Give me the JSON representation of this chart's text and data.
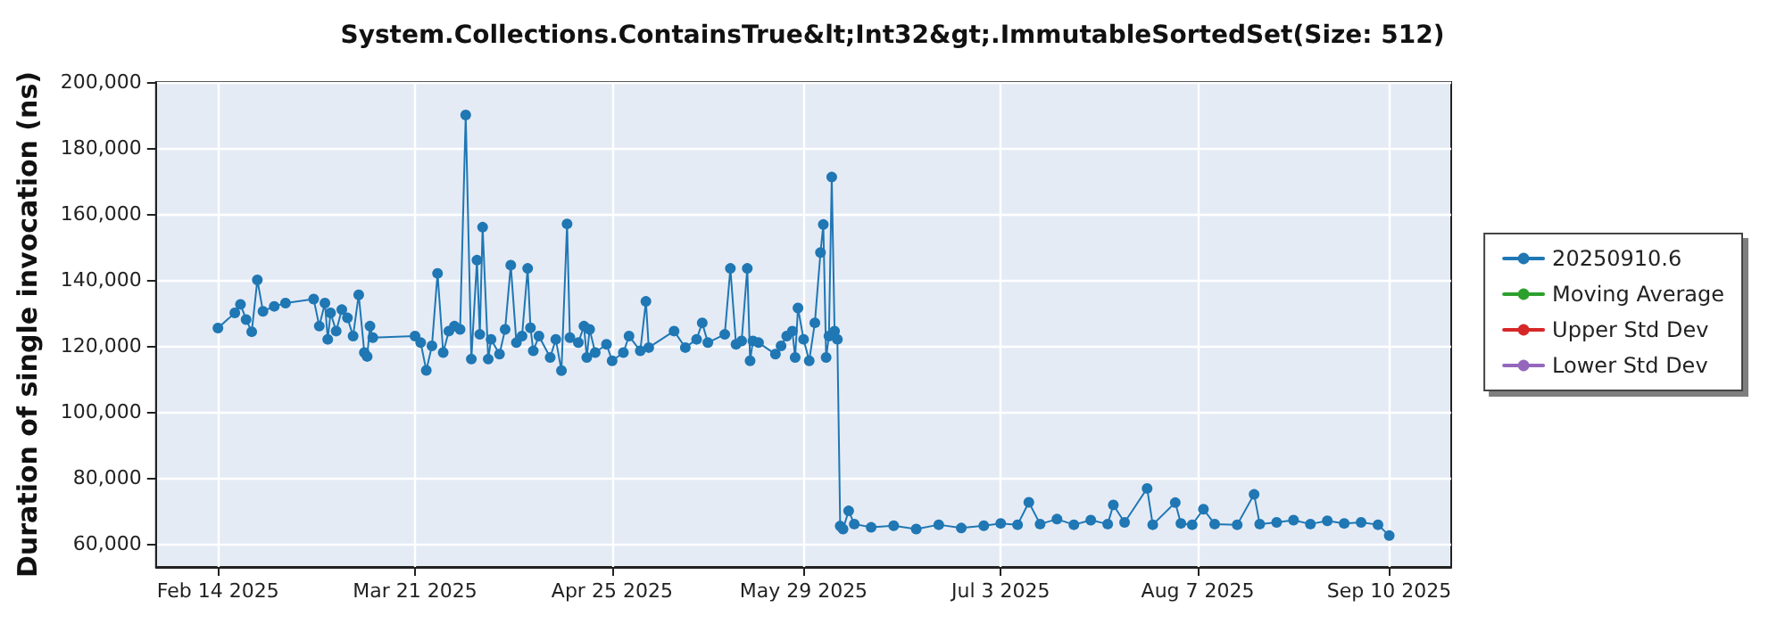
{
  "chart_data": {
    "type": "line",
    "title": "System.Collections.ContainsTrue&lt;Int32&gt;.ImmutableSortedSet(Size: 512)",
    "ylabel": "Duration of single invocation (ns)",
    "xlim": [
      "2025-02-03",
      "2025-09-21"
    ],
    "ylim": [
      53000,
      200000
    ],
    "xticks": [
      {
        "value": "2025-02-14",
        "label": "Feb 14 2025"
      },
      {
        "value": "2025-03-21",
        "label": "Mar 21 2025"
      },
      {
        "value": "2025-04-25",
        "label": "Apr 25 2025"
      },
      {
        "value": "2025-05-29",
        "label": "May 29 2025"
      },
      {
        "value": "2025-07-03",
        "label": "Jul 3 2025"
      },
      {
        "value": "2025-08-07",
        "label": "Aug 7 2025"
      },
      {
        "value": "2025-09-10",
        "label": "Sep 10 2025"
      }
    ],
    "yticks": [
      {
        "value": 60000,
        "label": "60,000"
      },
      {
        "value": 80000,
        "label": "80,000"
      },
      {
        "value": 100000,
        "label": "100,000"
      },
      {
        "value": 120000,
        "label": "120,000"
      },
      {
        "value": 140000,
        "label": "140,000"
      },
      {
        "value": 160000,
        "label": "160,000"
      },
      {
        "value": 180000,
        "label": "180,000"
      },
      {
        "value": 200000,
        "label": "200,000"
      }
    ],
    "grid": true,
    "legend": "right",
    "marker": "circle",
    "line_style": "solid",
    "series": [
      {
        "name": "20250910.6",
        "color": "#1f77b4",
        "x": [
          "2025-02-14",
          "2025-02-17",
          "2025-02-18",
          "2025-02-19",
          "2025-02-20",
          "2025-02-21",
          "2025-02-22",
          "2025-02-24",
          "2025-02-26",
          "2025-03-03",
          "2025-03-04",
          "2025-03-05",
          "2025-03-05T12:00",
          "2025-03-06",
          "2025-03-07",
          "2025-03-08",
          "2025-03-09",
          "2025-03-10",
          "2025-03-11",
          "2025-03-12",
          "2025-03-12T12:00",
          "2025-03-13",
          "2025-03-13T12:00",
          "2025-03-21",
          "2025-03-22",
          "2025-03-23",
          "2025-03-24",
          "2025-03-25",
          "2025-03-26",
          "2025-03-27",
          "2025-03-28",
          "2025-03-29",
          "2025-03-30",
          "2025-03-31",
          "2025-04-01",
          "2025-04-01T12:00",
          "2025-04-02",
          "2025-04-03",
          "2025-04-03T12:00",
          "2025-04-05",
          "2025-04-06",
          "2025-04-07",
          "2025-04-08",
          "2025-04-09",
          "2025-04-10",
          "2025-04-10T12:00",
          "2025-04-11",
          "2025-04-12",
          "2025-04-14",
          "2025-04-15",
          "2025-04-16",
          "2025-04-17",
          "2025-04-17T12:00",
          "2025-04-19",
          "2025-04-20",
          "2025-04-20T12:00",
          "2025-04-21",
          "2025-04-22",
          "2025-04-24",
          "2025-04-25",
          "2025-04-27",
          "2025-04-28",
          "2025-04-30",
          "2025-05-01",
          "2025-05-01T12:00",
          "2025-05-06",
          "2025-05-08",
          "2025-05-10",
          "2025-05-11",
          "2025-05-12",
          "2025-05-15",
          "2025-05-16",
          "2025-05-17",
          "2025-05-18",
          "2025-05-19",
          "2025-05-19T12:00",
          "2025-05-20",
          "2025-05-21",
          "2025-05-24",
          "2025-05-25",
          "2025-05-26",
          "2025-05-27",
          "2025-05-27T12:00",
          "2025-05-28",
          "2025-05-29",
          "2025-05-30",
          "2025-05-31",
          "2025-06-01",
          "2025-06-01T12:00",
          "2025-06-02",
          "2025-06-02T12:00",
          "2025-06-03",
          "2025-06-03T12:00",
          "2025-06-04",
          "2025-06-04T12:00",
          "2025-06-05",
          "2025-06-06",
          "2025-06-07",
          "2025-06-10",
          "2025-06-14",
          "2025-06-18",
          "2025-06-22",
          "2025-06-26",
          "2025-06-30",
          "2025-07-03",
          "2025-07-06",
          "2025-07-08",
          "2025-07-10",
          "2025-07-13",
          "2025-07-16",
          "2025-07-19",
          "2025-07-22",
          "2025-07-23",
          "2025-07-25",
          "2025-07-29",
          "2025-07-30",
          "2025-08-03",
          "2025-08-04",
          "2025-08-06",
          "2025-08-08",
          "2025-08-10",
          "2025-08-14",
          "2025-08-17",
          "2025-08-18",
          "2025-08-21",
          "2025-08-24",
          "2025-08-27",
          "2025-08-30",
          "2025-09-02",
          "2025-09-05",
          "2025-09-08",
          "2025-09-10"
        ],
        "values": [
          125400,
          130000,
          132600,
          128000,
          124300,
          140000,
          130500,
          132000,
          133000,
          134200,
          126000,
          133000,
          122000,
          130000,
          124500,
          131000,
          128500,
          123000,
          135500,
          118000,
          116800,
          126000,
          122500,
          123000,
          121000,
          112600,
          120000,
          142000,
          118000,
          124500,
          126000,
          125000,
          190000,
          116000,
          146000,
          123500,
          156000,
          116000,
          122000,
          117500,
          125000,
          144500,
          121000,
          123000,
          143500,
          125500,
          118500,
          123000,
          116500,
          122000,
          112500,
          157000,
          122500,
          121000,
          126000,
          116500,
          125000,
          118000,
          120500,
          115500,
          118000,
          123000,
          118500,
          133500,
          119500,
          124500,
          119500,
          122000,
          127000,
          121000,
          123500,
          143500,
          120500,
          121500,
          143500,
          115500,
          121500,
          121000,
          117500,
          120000,
          123000,
          124500,
          116500,
          131500,
          122000,
          115500,
          127000,
          148300,
          156800,
          116500,
          123000,
          171200,
          124500,
          122000,
          65400,
          64500,
          70000,
          66000,
          65000,
          65500,
          64500,
          65800,
          64800,
          65500,
          66200,
          65800,
          72600,
          66000,
          67500,
          65800,
          67200,
          66000,
          71800,
          66500,
          76800,
          65800,
          72500,
          66200,
          65800,
          70500,
          66000,
          65800,
          75000,
          66000,
          66500,
          67200,
          66000,
          67000,
          66200,
          66500,
          65800,
          62500
        ]
      },
      {
        "name": "Moving Average",
        "color": "#2ca02c"
      },
      {
        "name": "Upper Std Dev",
        "color": "#d62728"
      },
      {
        "name": "Lower Std Dev",
        "color": "#9467bd"
      }
    ]
  }
}
